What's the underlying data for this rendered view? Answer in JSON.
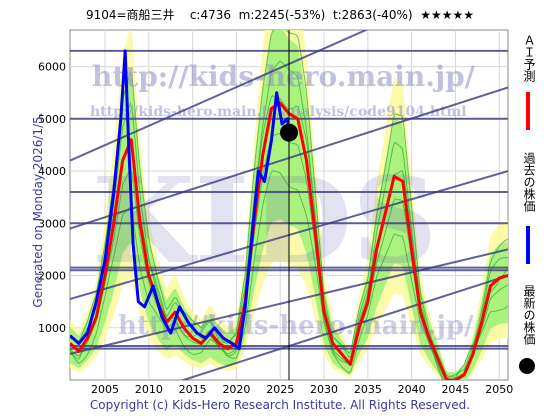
{
  "header": {
    "code_name": "9104=商船三井",
    "current": "c:4736",
    "min": "m:2245(-53%)",
    "target": "t:2863(-40%)",
    "rating": "★★★★★"
  },
  "side_label": "Generated on Monday 2026/1/5.",
  "footer": "Copyright (c) Kids-Hero Research Institute. All Rights Reserved.",
  "watermark": {
    "url_main": "http://kids-hero.main.jp/",
    "url_analysis": "http://kids-hero.main.jp/analysis/code9104.html",
    "big": "KIDS",
    "url_lower": "http://kids-hero.main.jp/"
  },
  "legend": [
    {
      "label": "ＡＩ予測",
      "color": "#ff0000",
      "shape": "line"
    },
    {
      "label": "過去の株価",
      "color": "#0000ff",
      "shape": "line"
    },
    {
      "label": "最新の株価",
      "color": "#000000",
      "shape": "dot"
    }
  ],
  "colors": {
    "band_green": "#90ee70",
    "band_yellow": "#fafaa0",
    "trend_lines": "#3a3a80",
    "history": "#0000ff",
    "forecast": "#ff0000"
  },
  "chart_data": {
    "type": "line",
    "xlim": [
      2001,
      2051
    ],
    "ylim": [
      0,
      6700
    ],
    "x_ticks": [
      2005,
      2010,
      2015,
      2020,
      2025,
      2030,
      2035,
      2040,
      2045,
      2050
    ],
    "y_ticks": [
      1000,
      2000,
      3000,
      4000,
      5000,
      6000
    ],
    "grid": true,
    "latest_point": {
      "x": 2026.0,
      "y": 4736
    },
    "horizontal_lines": [
      6300,
      5000,
      3600,
      3000,
      2150,
      2100,
      650,
      600
    ],
    "trend_lines": [
      {
        "x": [
          2001,
          2051
        ],
        "y": [
          4200,
          7900
        ]
      },
      {
        "x": [
          2001,
          2051
        ],
        "y": [
          2900,
          5600
        ]
      },
      {
        "x": [
          2001,
          2051
        ],
        "y": [
          1550,
          4000
        ]
      },
      {
        "x": [
          2001,
          2051
        ],
        "y": [
          500,
          2500
        ]
      },
      {
        "x": [
          2001,
          2051
        ],
        "y": [
          -700,
          2000
        ]
      }
    ],
    "series": [
      {
        "type": "line",
        "x": [
          2001,
          2002,
          2003,
          2004,
          2005,
          2006,
          2006.8,
          2007.3,
          2007.7,
          2008.2,
          2008.8,
          2009.5,
          2010.5,
          2011.5,
          2012.5,
          2013.5,
          2014.5,
          2015.5,
          2016.5,
          2017.5,
          2018.5,
          2019.5,
          2020.3,
          2021,
          2021.8,
          2022.5,
          2023.2,
          2024,
          2024.6,
          2025.2,
          2025.8,
          2026.0
        ],
        "y": [
          850,
          700,
          900,
          1500,
          2300,
          3600,
          5000,
          6300,
          4500,
          2600,
          1500,
          1400,
          1800,
          1200,
          900,
          1400,
          1100,
          900,
          800,
          1000,
          800,
          700,
          600,
          1400,
          2800,
          4000,
          3800,
          4600,
          5500,
          4900,
          5000,
          4736
        ]
      },
      {
        "type": "line",
        "x": [
          2001,
          2002,
          2003,
          2004,
          2005,
          2006,
          2007,
          2008,
          2009,
          2010,
          2011,
          2012,
          2013,
          2014,
          2015,
          2016,
          2017,
          2018,
          2019,
          2020,
          2021,
          2022,
          2023,
          2024,
          2025,
          2026,
          2027,
          2028,
          2029,
          2030,
          2031,
          2032,
          2033,
          2034,
          2035,
          2036,
          2037,
          2038,
          2039,
          2040,
          2041,
          2042,
          2043,
          2044,
          2045,
          2046,
          2047,
          2048,
          2049,
          2050,
          2051
        ],
        "y": [
          700,
          550,
          800,
          1200,
          2000,
          3000,
          4200,
          4600,
          3000,
          2000,
          1500,
          1100,
          1300,
          1000,
          800,
          700,
          900,
          700,
          600,
          700,
          1500,
          3000,
          4300,
          5200,
          5300,
          5100,
          5000,
          4200,
          2800,
          1300,
          700,
          500,
          300,
          1000,
          1500,
          2500,
          3200,
          3900,
          3800,
          2500,
          1300,
          800,
          400,
          0,
          0,
          100,
          500,
          1100,
          1800,
          1950,
          2000
        ]
      }
    ]
  }
}
